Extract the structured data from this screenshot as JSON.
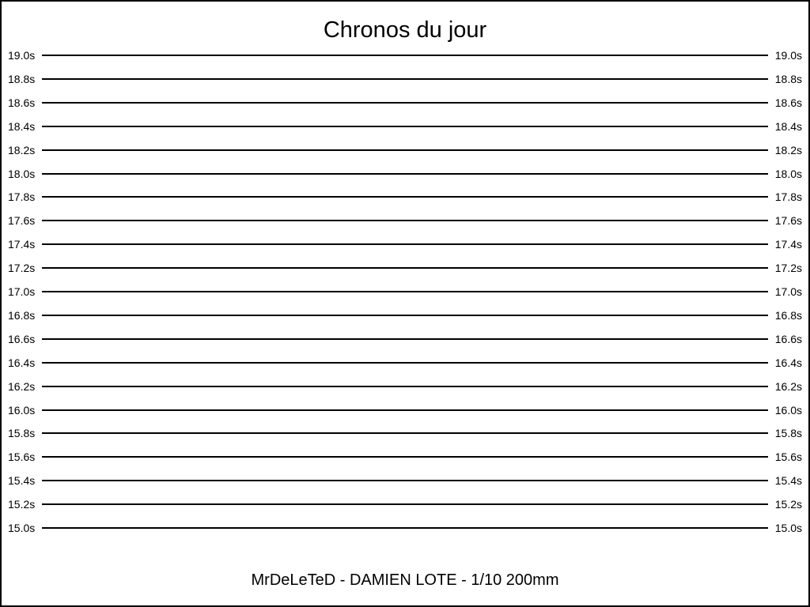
{
  "chart_data": {
    "type": "line",
    "title": "Chronos du jour",
    "caption": "MrDeLeTeD - DAMIEN LOTE - 1/10 200mm",
    "xlabel": "",
    "ylabel": "",
    "ylim": [
      15.0,
      19.0
    ],
    "y_tick_step_seconds": 0.2,
    "y_ticks": [
      "19.0s",
      "18.8s",
      "18.6s",
      "18.4s",
      "18.2s",
      "18.0s",
      "17.8s",
      "17.6s",
      "17.4s",
      "17.2s",
      "17.0s",
      "16.8s",
      "16.6s",
      "16.4s",
      "16.2s",
      "16.0s",
      "15.8s",
      "15.6s",
      "15.4s",
      "15.2s",
      "15.0s"
    ],
    "y_tick_values": [
      19.0,
      18.8,
      18.6,
      18.4,
      18.2,
      18.0,
      17.8,
      17.6,
      17.4,
      17.2,
      17.0,
      16.8,
      16.6,
      16.4,
      16.2,
      16.0,
      15.8,
      15.6,
      15.4,
      15.2,
      15.0
    ],
    "series": [],
    "grid": true,
    "legend": false,
    "tick_labels_both_sides": true
  },
  "colors": {
    "background": "#ffffff",
    "text": "#000000",
    "gridline": "#000000",
    "border": "#000000"
  }
}
